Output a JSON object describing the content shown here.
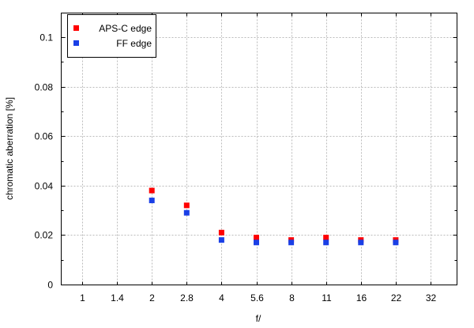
{
  "chart_data": {
    "type": "scatter",
    "title": "",
    "xlabel": "f/",
    "ylabel": "chromatic aberration [%]",
    "categories": [
      "1",
      "1.4",
      "2",
      "2.8",
      "4",
      "5.6",
      "8",
      "11",
      "16",
      "22",
      "32"
    ],
    "ylim": [
      0,
      0.11
    ],
    "yticks": [
      0,
      0.02,
      0.04,
      0.06,
      0.08,
      0.1
    ],
    "ytick_labels": [
      "0",
      "0.02",
      "0.04",
      "0.06",
      "0.08",
      "0.1"
    ],
    "grid": true,
    "legend_position": "top-left",
    "series": [
      {
        "name": "APS-C edge",
        "color": "#ff0000",
        "points": [
          [
            "2",
            0.038
          ],
          [
            "2.8",
            0.032
          ],
          [
            "4",
            0.021
          ],
          [
            "5.6",
            0.019
          ],
          [
            "8",
            0.018
          ],
          [
            "11",
            0.019
          ],
          [
            "16",
            0.018
          ],
          [
            "22",
            0.018
          ]
        ]
      },
      {
        "name": "FF edge",
        "color": "#1a3fe6",
        "points": [
          [
            "2",
            0.034
          ],
          [
            "2.8",
            0.029
          ],
          [
            "4",
            0.018
          ],
          [
            "5.6",
            0.017
          ],
          [
            "8",
            0.017
          ],
          [
            "11",
            0.017
          ],
          [
            "16",
            0.017
          ],
          [
            "22",
            0.017
          ]
        ]
      }
    ]
  }
}
